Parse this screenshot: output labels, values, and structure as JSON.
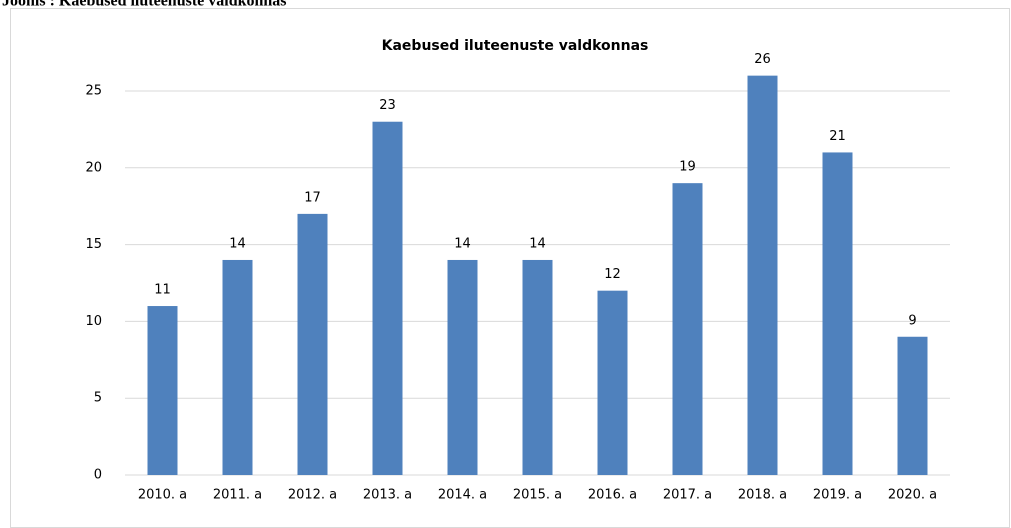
{
  "caption": "Joonis : Kaebused iluteenuste valdkonnas",
  "chart_data": {
    "type": "bar",
    "title": "Kaebused iluteenuste valdkonnas",
    "categories": [
      "2010. a",
      "2011. a",
      "2012. a",
      "2013. a",
      "2014. a",
      "2015. a",
      "2016. a",
      "2017. a",
      "2018. a",
      "2019. a",
      "2020. a"
    ],
    "values": [
      11,
      14,
      17,
      23,
      14,
      14,
      12,
      19,
      26,
      21,
      9
    ],
    "color": "#4f81bd",
    "ylim": [
      0,
      25
    ],
    "yticks": [
      0,
      5,
      10,
      15,
      20,
      25
    ],
    "grid": true
  }
}
